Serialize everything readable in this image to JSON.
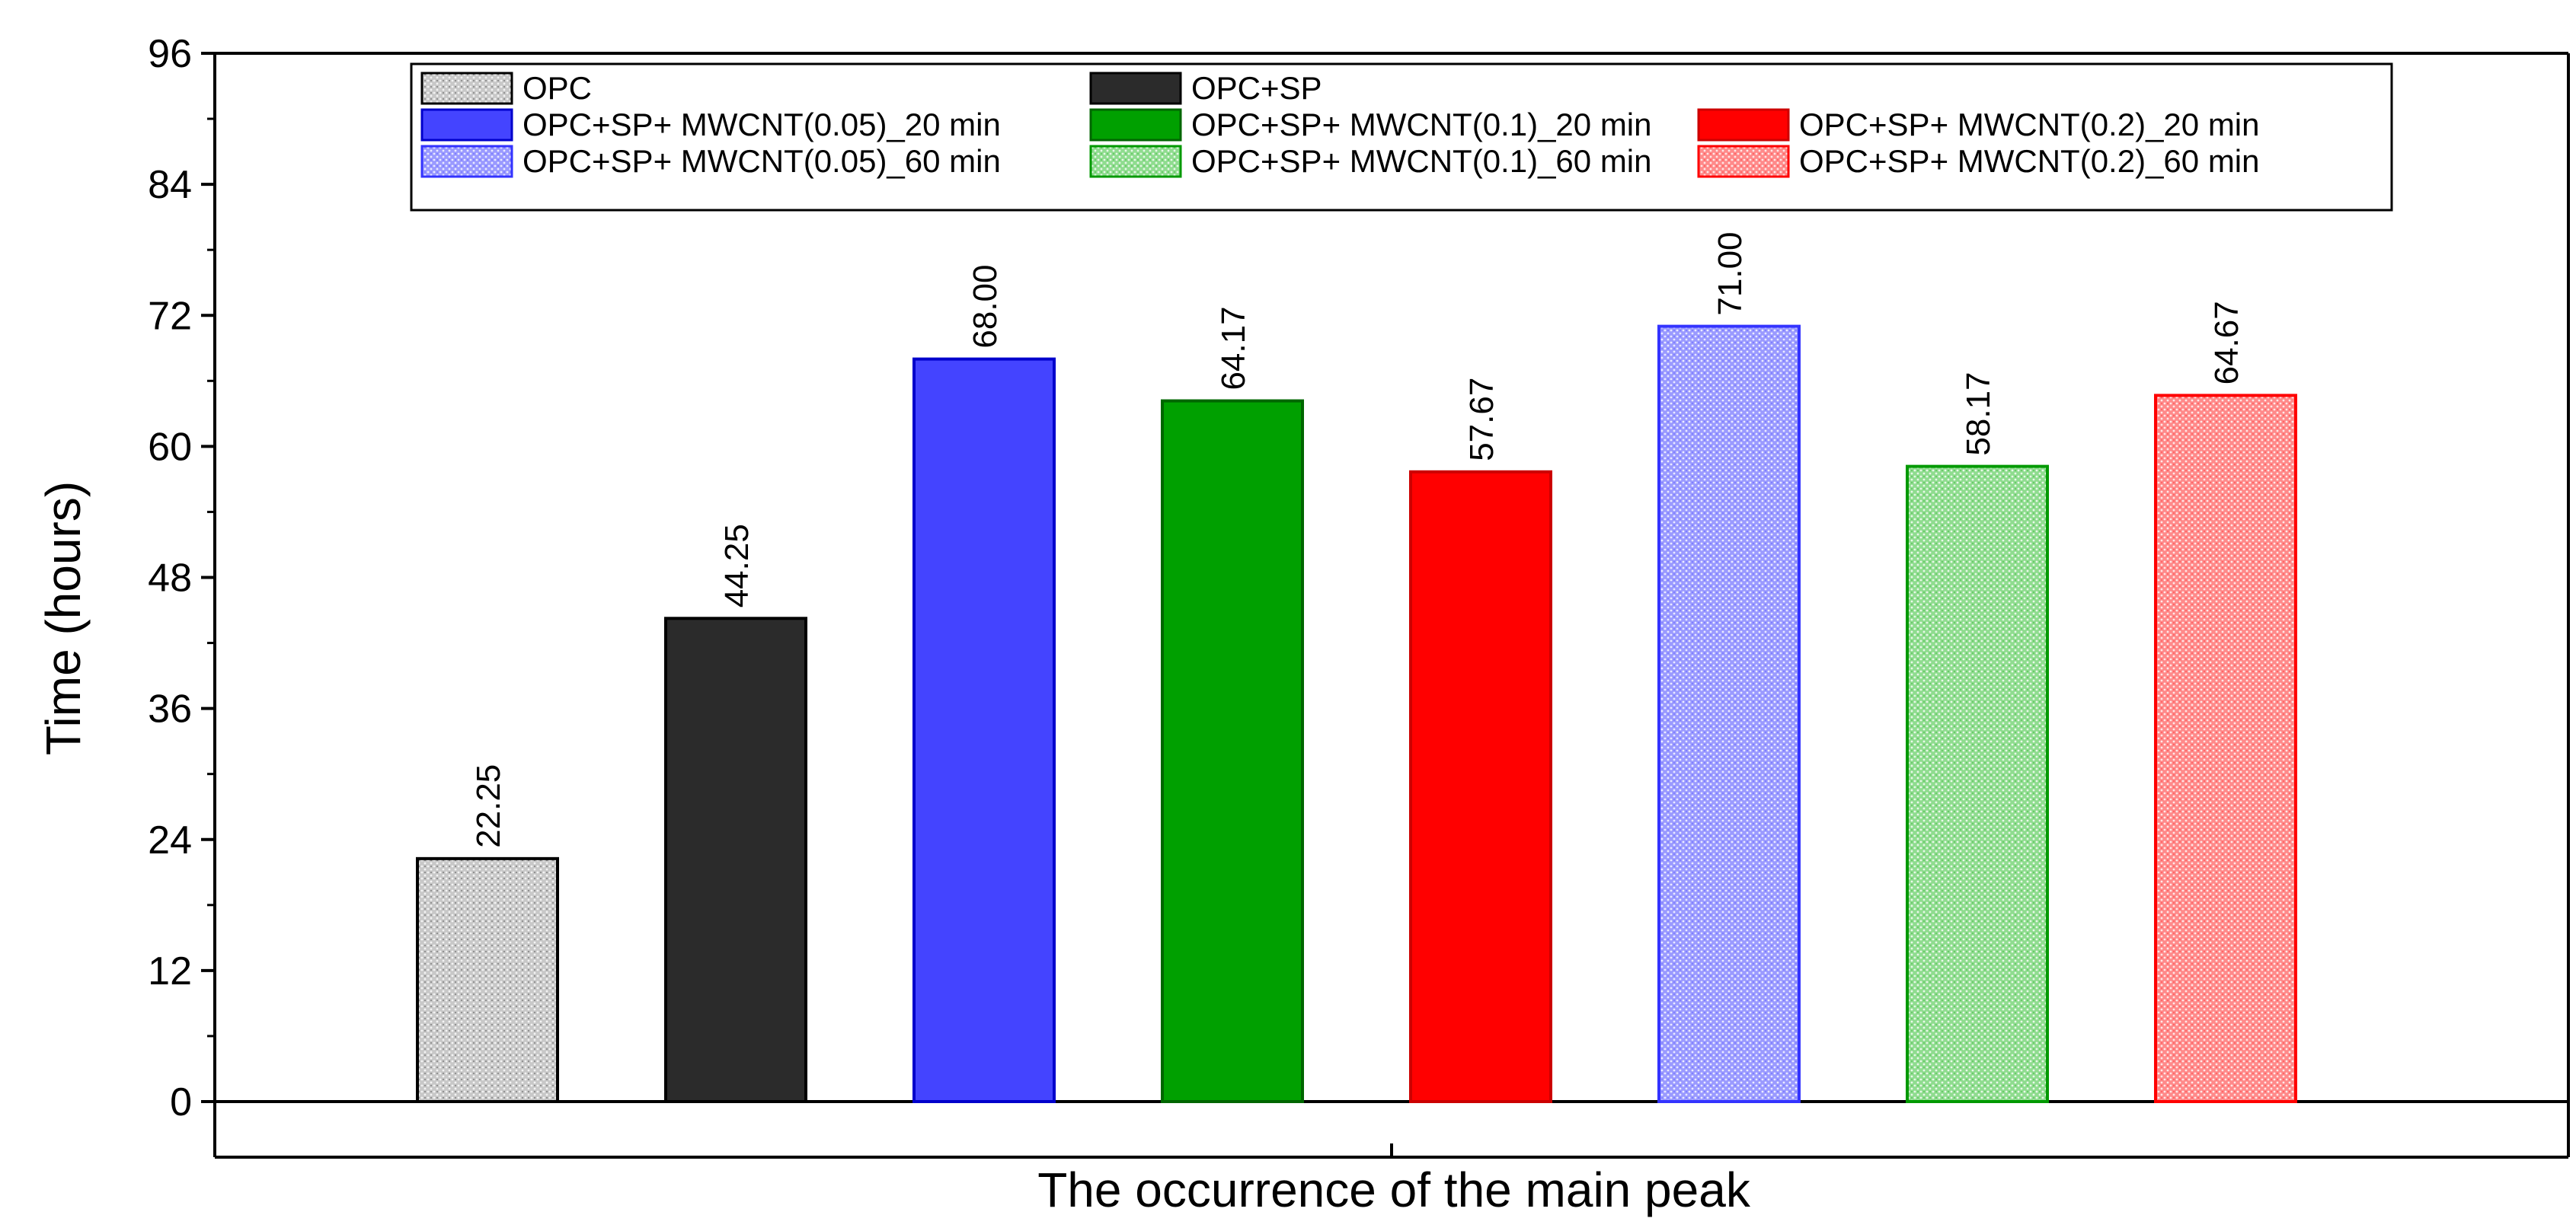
{
  "chart_data": {
    "type": "bar",
    "title": "",
    "xlabel": "The occurrence of the main peak",
    "ylabel": "Time (hours)",
    "ylim": [
      0,
      96
    ],
    "yticks": [
      "0",
      "12",
      "24",
      "36",
      "48",
      "60",
      "72",
      "84",
      "96"
    ],
    "grid": false,
    "legend_position": "top",
    "series": [
      {
        "name": "OPC",
        "value": 22.25,
        "label": "22.25",
        "color": "#c8c8c8",
        "edge": "#000000",
        "pattern": "dots"
      },
      {
        "name": "OPC+SP",
        "value": 44.25,
        "label": "44.25",
        "color": "#2b2b2b",
        "edge": "#000000",
        "pattern": "solid"
      },
      {
        "name": "OPC+SP+ MWCNT(0.05)_20 min",
        "value": 68.0,
        "label": "68.00",
        "color": "#4444ff",
        "edge": "#0000cc",
        "pattern": "solid"
      },
      {
        "name": "OPC+SP+ MWCNT(0.1)_20 min",
        "value": 64.17,
        "label": "64.17",
        "color": "#00a000",
        "edge": "#006600",
        "pattern": "solid"
      },
      {
        "name": "OPC+SP+ MWCNT(0.2)_20 min",
        "value": 57.67,
        "label": "57.67",
        "color": "#ff0000",
        "edge": "#cc0000",
        "pattern": "solid"
      },
      {
        "name": "OPC+SP+ MWCNT(0.05)_60 min",
        "value": 71.0,
        "label": "71.00",
        "color": "#9a9aff",
        "edge": "#3333ff",
        "pattern": "dots"
      },
      {
        "name": "OPC+SP+ MWCNT(0.1)_60 min",
        "value": 58.17,
        "label": "58.17",
        "color": "#8fdc8f",
        "edge": "#009900",
        "pattern": "dots"
      },
      {
        "name": "OPC+SP+ MWCNT(0.2)_60 min",
        "value": 64.67,
        "label": "64.67",
        "color": "#ff8a8a",
        "edge": "#ff0000",
        "pattern": "dots"
      }
    ]
  }
}
